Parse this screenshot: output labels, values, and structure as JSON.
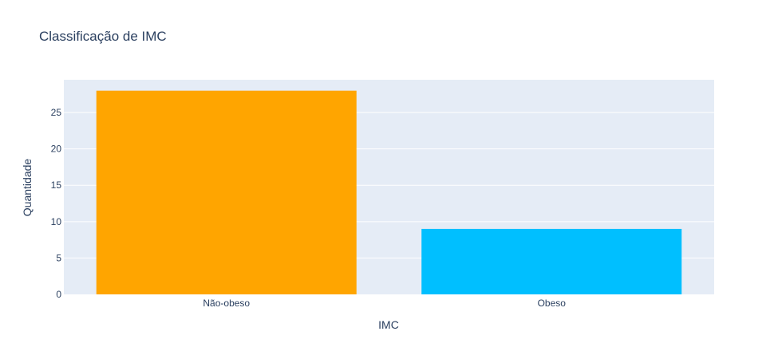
{
  "chart_data": {
    "type": "bar",
    "title": "Classificação de IMC",
    "xlabel": "IMC",
    "ylabel": "Quantidade",
    "categories": [
      "Não-obeso",
      "Obeso"
    ],
    "values": [
      28,
      9
    ],
    "colors": [
      "#FFA500",
      "#00BFFF"
    ],
    "ylim": [
      0,
      29.5
    ],
    "yticks": [
      0,
      5,
      10,
      15,
      20,
      25
    ],
    "grid": true,
    "plot_bg": "#E5ECF6",
    "grid_color": "#ffffff",
    "text_color": "#2a3f5f"
  }
}
